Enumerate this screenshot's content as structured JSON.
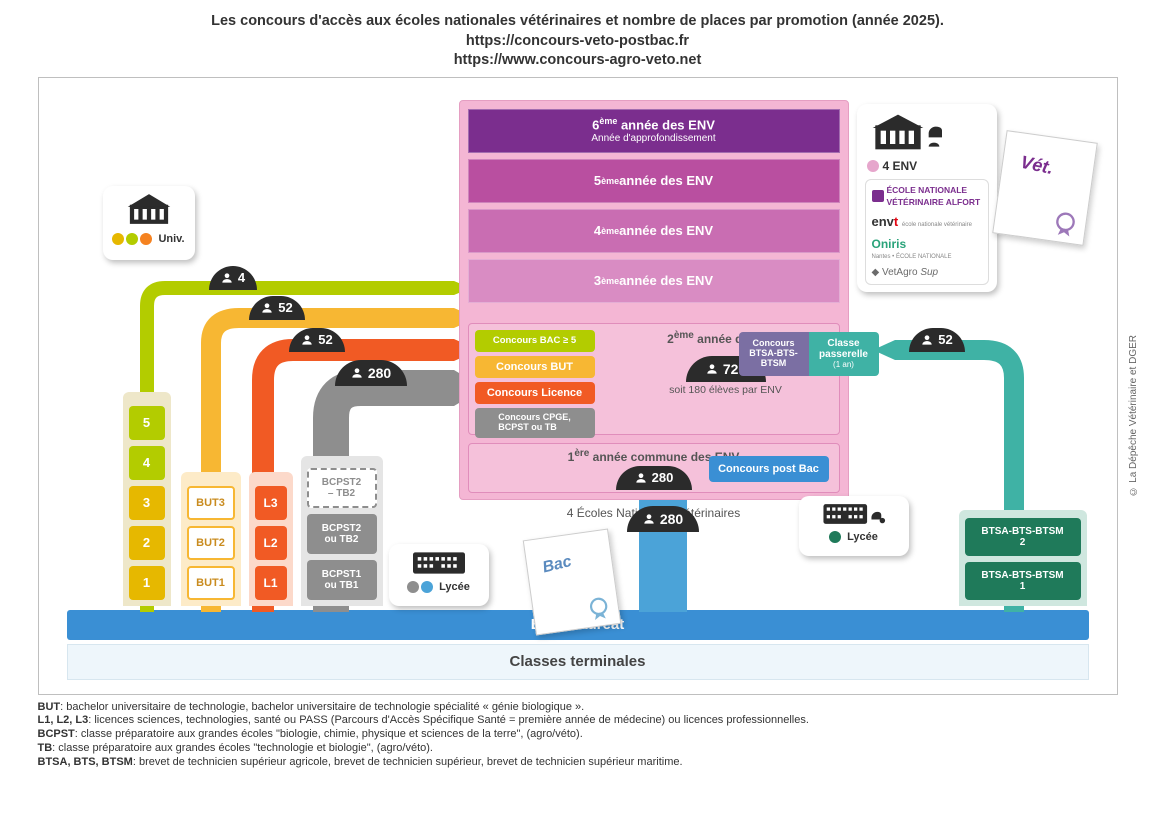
{
  "title_line1": "Les concours d'accès aux écoles nationales vétérinaires et nombre de places par promotion (année 2025).",
  "title_url1": "https://concours-veto-postbac.fr",
  "title_url2": "https://www.concours-agro-veto.net",
  "credit": "© La Dépêche Vétérinaire et DGER",
  "baccalaureat_label": "Baccalauréat",
  "classes_terminales_label": "Classes terminales",
  "env_caption": "4 Écoles Nationales Vétérinaires",
  "univ": {
    "label": "Univ.",
    "levels": [
      "1",
      "2",
      "3",
      "4",
      "5"
    ],
    "dot_colors": [
      "#e6b800",
      "#b3cc00",
      "#f58220"
    ],
    "block_colors": [
      "#e6b800",
      "#e6b800",
      "#e6b800",
      "#b3cc00",
      "#b3cc00"
    ],
    "outline": "#eee7c9"
  },
  "but": {
    "levels": [
      "BUT1",
      "BUT2",
      "BUT3"
    ],
    "colors": [
      "#f7b733",
      "#f7b733",
      "#f7b733"
    ],
    "outline": "#fdebc8"
  },
  "licence": {
    "levels": [
      "L1",
      "L2",
      "L3"
    ],
    "colors": [
      "#f15a24",
      "#f15a24",
      "#f15a24"
    ],
    "outline": "#fcd9ca"
  },
  "cpge": {
    "levels": [
      "BCPST1 ou TB1",
      "BCPST2 ou TB2",
      "BCPST2 – TB2"
    ],
    "color": "#8e8e8e",
    "dashed_color": "#8e8e8e",
    "outline": "#e5e5e5"
  },
  "lycee1": {
    "label": "Lycée",
    "dot_colors": [
      "#8e8e8e",
      "#4ba3d8"
    ]
  },
  "lycee2": {
    "label": "Lycée",
    "dot_color": "#1f7a5a"
  },
  "btsa": {
    "levels": [
      "BTSA-BTS-BTSM 1",
      "BTSA-BTS-BTSM 2"
    ],
    "color": "#1f7a5a",
    "outline": "#cfe7df"
  },
  "passerelle": {
    "concours_label": "Concours BTSA-BTS-BTSM",
    "concours_color": "#7b6fa3",
    "class_label": "Classe passerelle",
    "class_sub": "(1 an)",
    "class_color": "#3fb2a5"
  },
  "postbac": {
    "label": "Concours post Bac",
    "color": "#3a8fd4"
  },
  "env": {
    "bg": "#f4b6d4",
    "panel_border": "#e59ec2",
    "years": [
      {
        "sup": "6",
        "txt": "ème année des ENV",
        "sub": "Année d'approfondissement",
        "color": "#7b2e8e"
      },
      {
        "sup": "5",
        "txt": "ème année des ENV",
        "color": "#b94fa0"
      },
      {
        "sup": "4",
        "txt": "ème année des ENV",
        "color": "#c96db2"
      },
      {
        "sup": "3",
        "txt": "ème année des ENV",
        "color": "#d98cc3"
      }
    ],
    "year2_label_sup": "2",
    "year2_label_txt": "ème année des ENV",
    "year2_count": "720",
    "year2_sub": "soit 180 élèves par ENV",
    "year1_label_sup": "1",
    "year1_label_txt": "ère année commune des ENV",
    "year1_count": "280"
  },
  "concours_left": [
    {
      "label": "Concours BAC ≥ 5",
      "color": "#b3cc00"
    },
    {
      "label": "Concours BUT",
      "color": "#f7b733"
    },
    {
      "label": "Concours Licence",
      "color": "#f15a24"
    },
    {
      "label": "Concours CPGE, BCPST ou TB",
      "color": "#8e8e8e"
    }
  ],
  "counts": {
    "univ": "4",
    "but": "52",
    "licence": "52",
    "cpge": "280",
    "postbac": "280",
    "btsa": "52"
  },
  "env_card": {
    "count_label": "4 ENV",
    "dot_color": "#e6a6cc",
    "schools": [
      "ÉCOLE NATIONALE VÉTÉRINAIRE ALFORT",
      "envt",
      "Oniris",
      "VetAgro Sup"
    ],
    "school_colors": [
      "#7b2e8e",
      "#333333",
      "#2aa37a",
      "#6b6b6b"
    ]
  },
  "diplomas": {
    "bac": "Bac",
    "vet": "Vét."
  },
  "arrows": {
    "univ": {
      "color": "#b3cc00"
    },
    "but": {
      "color": "#f7b733"
    },
    "licence": {
      "color": "#f15a24"
    },
    "cpge": {
      "color": "#8e8e8e"
    },
    "postbac": {
      "color": "#4ba3d8",
      "width": 48
    },
    "btsa": {
      "color": "#3fb2a5"
    }
  },
  "footnotes": [
    {
      "k": "BUT",
      "v": ": bachelor universitaire de technologie, bachelor universitaire de technologie spécialité « génie biologique »."
    },
    {
      "k": "L1, L2, L3",
      "v": ": licences sciences, technologies, santé ou PASS (Parcours d'Accès Spécifique Santé = première année de médecine) ou licences professionnelles."
    },
    {
      "k": "BCPST",
      "v": ": classe préparatoire aux grandes écoles \"biologie, chimie, physique et sciences de la terre\", (agro/véto)."
    },
    {
      "k": "TB",
      "v": ": classe préparatoire aux grandes écoles \"technologie et biologie\", (agro/véto)."
    },
    {
      "k": "BTSA, BTS, BTSM",
      "v": ": brevet de technicien supérieur agricole, brevet de technicien supérieur, brevet de technicien supérieur maritime."
    }
  ]
}
